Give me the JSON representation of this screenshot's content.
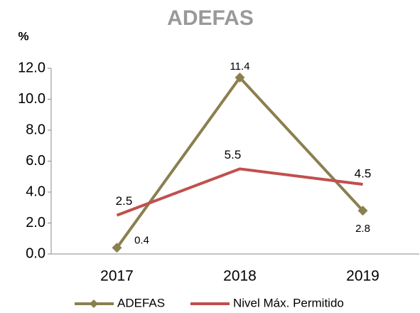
{
  "chart_data": {
    "type": "line",
    "title": "ADEFAS",
    "y_label": "%",
    "categories": [
      "2017",
      "2018",
      "2019"
    ],
    "series": [
      {
        "name": "ADEFAS",
        "color": "#8b7f4f",
        "values": [
          0.4,
          11.4,
          2.8
        ]
      },
      {
        "name": "Nivel Máx. Permitido",
        "color": "#c0504d",
        "values": [
          2.5,
          5.5,
          4.5
        ]
      }
    ],
    "ylim": [
      0,
      12
    ],
    "yticks": [
      {
        "value": 0,
        "label": "0.0"
      },
      {
        "value": 2,
        "label": "2.0"
      },
      {
        "value": 4,
        "label": "4.0"
      },
      {
        "value": 6,
        "label": "6.0"
      },
      {
        "value": 8,
        "label": "8.0"
      },
      {
        "value": 10,
        "label": "10.0"
      },
      {
        "value": 12,
        "label": "12.0"
      }
    ]
  }
}
